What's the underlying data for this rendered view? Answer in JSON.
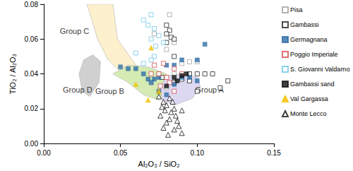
{
  "chart_data": {
    "type": "scatter",
    "x_label": "Al₂O₃ / SiO₂",
    "y_label": "TiO₂ / Al₂O₃",
    "xlim": [
      0,
      0.15
    ],
    "ylim": [
      0,
      0.08
    ],
    "xticks": [
      {
        "value": 0,
        "label": "0.00"
      },
      {
        "value": 0.05,
        "label": "0.05"
      },
      {
        "value": 0.1,
        "label": "0.10"
      },
      {
        "value": 0.15,
        "label": "0.15"
      }
    ],
    "yticks": [
      {
        "value": 0,
        "label": "0.00"
      },
      {
        "value": 0.02,
        "label": "0.02"
      },
      {
        "value": 0.04,
        "label": "0.04"
      },
      {
        "value": 0.06,
        "label": "0.06"
      },
      {
        "value": 0.08,
        "label": "0.08"
      }
    ],
    "grid": false,
    "legend": "right",
    "regions": [
      {
        "name": "Group C",
        "color": "#fdf0cc",
        "label_at": [
          0.02,
          0.0645
        ],
        "points": [
          [
            0.028,
            0.08
          ],
          [
            0.045,
            0.08
          ],
          [
            0.048,
            0.06
          ],
          [
            0.06,
            0.045
          ],
          [
            0.072,
            0.04
          ],
          [
            0.068,
            0.035
          ],
          [
            0.055,
            0.037
          ],
          [
            0.042,
            0.048
          ],
          [
            0.035,
            0.06
          ],
          [
            0.03,
            0.075
          ]
        ]
      },
      {
        "name": "Group D",
        "color": "#d0d0d0",
        "label_at": [
          0.022,
          0.031
        ],
        "points": [
          [
            0.025,
            0.03
          ],
          [
            0.023,
            0.04
          ],
          [
            0.026,
            0.048
          ],
          [
            0.032,
            0.051
          ],
          [
            0.037,
            0.047
          ],
          [
            0.036,
            0.035
          ],
          [
            0.03,
            0.027
          ]
        ]
      },
      {
        "name": "Group B",
        "color": "#d4ebb4",
        "label_at": [
          0.043,
          0.03
        ],
        "points": [
          [
            0.045,
            0.04
          ],
          [
            0.055,
            0.045
          ],
          [
            0.068,
            0.044
          ],
          [
            0.08,
            0.04
          ],
          [
            0.085,
            0.033
          ],
          [
            0.08,
            0.028
          ],
          [
            0.075,
            0.025
          ],
          [
            0.065,
            0.028
          ],
          [
            0.055,
            0.035
          ]
        ]
      },
      {
        "name": "Group A",
        "color": "#ddd8f2",
        "label_at": [
          0.108,
          0.031
        ],
        "points": [
          [
            0.076,
            0.032
          ],
          [
            0.08,
            0.039
          ],
          [
            0.09,
            0.04
          ],
          [
            0.1,
            0.038
          ],
          [
            0.102,
            0.033
          ],
          [
            0.097,
            0.026
          ],
          [
            0.085,
            0.022
          ],
          [
            0.077,
            0.025
          ]
        ]
      }
    ],
    "series": [
      {
        "name": "Pisa",
        "color": "#a0a0a0",
        "marker": "square-open",
        "x": [
          0.082,
          0.072,
          0.085,
          0.08,
          0.09,
          0.1,
          0.095,
          0.085,
          0.09,
          0.075,
          0.08,
          0.07
        ],
        "values": [
          0.074,
          0.063,
          0.058,
          0.054,
          0.046,
          0.047,
          0.047,
          0.04,
          0.039,
          0.039,
          0.032,
          0.035
        ]
      },
      {
        "name": "Gambassi",
        "color": "#222222",
        "marker": "square-open",
        "x": [
          0.08,
          0.082,
          0.08,
          0.083,
          0.085,
          0.08,
          0.085,
          0.095,
          0.1,
          0.105,
          0.11,
          0.12,
          0.115,
          0.1,
          0.09,
          0.095,
          0.085,
          0.077
        ],
        "values": [
          0.068,
          0.065,
          0.063,
          0.061,
          0.06,
          0.058,
          0.05,
          0.04,
          0.04,
          0.04,
          0.04,
          0.036,
          0.032,
          0.03,
          0.037,
          0.036,
          0.035,
          0.038
        ]
      },
      {
        "name": "Germagnana",
        "color": "#2e6ea6",
        "marker": "square",
        "x": [
          0.05,
          0.055,
          0.06,
          0.065,
          0.068,
          0.07,
          0.072,
          0.075,
          0.08,
          0.085,
          0.09,
          0.1,
          0.105,
          0.09,
          0.095,
          0.1,
          0.085,
          0.075,
          0.08
        ],
        "values": [
          0.044,
          0.043,
          0.043,
          0.04,
          0.037,
          0.035,
          0.037,
          0.038,
          0.045,
          0.045,
          0.048,
          0.048,
          0.057,
          0.038,
          0.038,
          0.036,
          0.034,
          0.03,
          0.028
        ]
      },
      {
        "name": "Poggio Imperiale",
        "color": "#d9484e",
        "marker": "square-open",
        "x": [
          0.072,
          0.078,
          0.085,
          0.075,
          0.07,
          0.08,
          0.09,
          0.082,
          0.076,
          0.085
        ],
        "values": [
          0.045,
          0.046,
          0.043,
          0.04,
          0.04,
          0.038,
          0.04,
          0.035,
          0.033,
          0.03
        ]
      },
      {
        "name": "S. Giovanni Valdarno",
        "color": "#6fc8e8",
        "marker": "square-open",
        "x": [
          0.065,
          0.07,
          0.068,
          0.072,
          0.075,
          0.07,
          0.073,
          0.072,
          0.065,
          0.07,
          0.06,
          0.078
        ],
        "values": [
          0.071,
          0.074,
          0.068,
          0.066,
          0.062,
          0.06,
          0.056,
          0.05,
          0.046,
          0.048,
          0.052,
          0.058
        ]
      },
      {
        "name": "Gambassi sand",
        "color": "#111111",
        "marker": "square",
        "x": [
          0.085,
          0.09,
          0.093,
          0.087,
          0.08
        ],
        "values": [
          0.038,
          0.039,
          0.04,
          0.036,
          0.033
        ]
      },
      {
        "name": "Val Gargassa",
        "color": "#f2c200",
        "marker": "triangle",
        "x": [
          0.07,
          0.075,
          0.06,
          0.068
        ],
        "values": [
          0.055,
          0.03,
          0.034,
          0.025
        ]
      },
      {
        "name": "Monte Lecco",
        "color": "#111111",
        "marker": "triangle-open",
        "x": [
          0.075,
          0.078,
          0.08,
          0.085,
          0.083,
          0.086,
          0.082,
          0.08,
          0.088,
          0.085,
          0.09,
          0.078,
          0.076,
          0.079,
          0.084,
          0.087,
          0.09,
          0.077,
          0.081,
          0.082
        ],
        "values": [
          0.027,
          0.024,
          0.022,
          0.02,
          0.018,
          0.016,
          0.014,
          0.012,
          0.01,
          0.008,
          0.006,
          0.009,
          0.016,
          0.019,
          0.024,
          0.013,
          0.019,
          0.021,
          0.005,
          0.026
        ]
      }
    ]
  }
}
